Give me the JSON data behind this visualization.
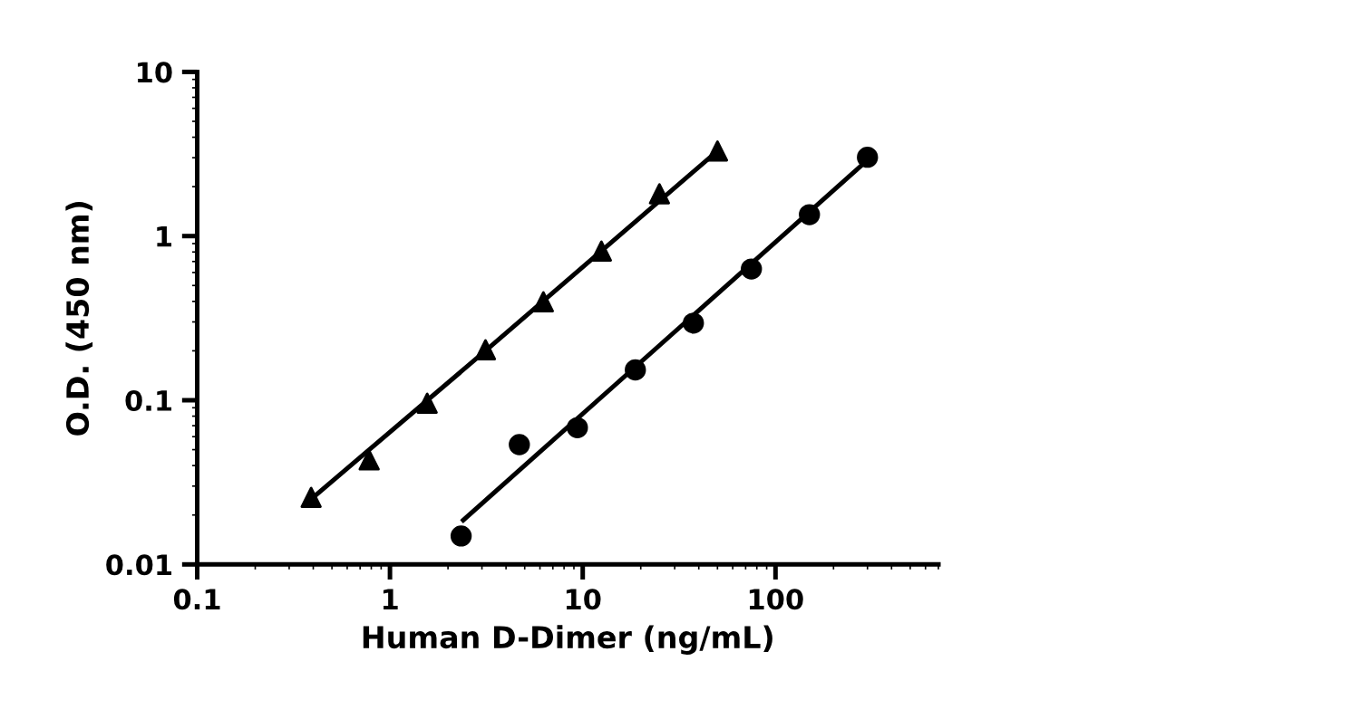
{
  "chart_data": {
    "type": "scatter",
    "xlabel": "Human D-Dimer (ng/mL)",
    "ylabel": "O.D. (450 nm)",
    "log": "xy",
    "xlim": [
      0.1,
      700
    ],
    "ylim": [
      0.01,
      10
    ],
    "xticks": [
      0.1,
      1,
      10,
      100
    ],
    "yticks": [
      0.01,
      0.1,
      1,
      10
    ],
    "grid": false,
    "series": [
      {
        "color": "#000000",
        "marker": "circle",
        "x": [
          2.34,
          4.69,
          9.38,
          18.75,
          37.5,
          75,
          150,
          300
        ],
        "values": [
          0.0149,
          0.0537,
          0.068,
          0.153,
          0.295,
          0.63,
          1.35,
          3.02
        ]
      },
      {
        "color": "#000000",
        "marker": "triangle",
        "x": [
          0.39,
          0.78,
          1.56,
          3.13,
          6.25,
          12.5,
          25,
          50
        ],
        "values": [
          0.0256,
          0.0433,
          0.096,
          0.203,
          0.398,
          0.81,
          1.81,
          3.3
        ]
      },
      {
        "type": "line",
        "color": "#000000",
        "marker": "none",
        "line_style": "solid",
        "x": [
          2.4,
          300
        ],
        "values": [
          0.0186,
          2.9
        ]
      },
      {
        "type": "line",
        "color": "#000000",
        "marker": "none",
        "line_style": "solid",
        "x": [
          0.39,
          3.13,
          50
        ],
        "values": [
          0.025,
          0.2,
          3.3
        ]
      }
    ]
  }
}
